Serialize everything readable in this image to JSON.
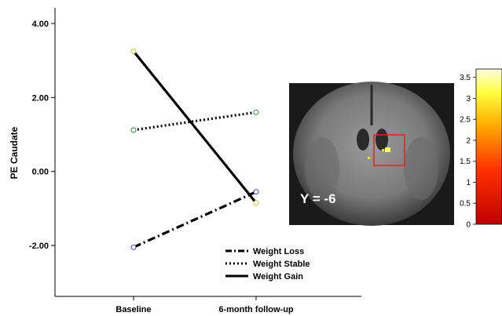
{
  "chart_data": {
    "type": "line",
    "ylabel": "PE Caudate",
    "xlabel": "",
    "categories": [
      "Baseline",
      "6-month follow-up"
    ],
    "y_ticks": [
      "-2.00",
      "0.00",
      "2.00",
      "4.00"
    ],
    "ylim": [
      -3.5,
      4.2
    ],
    "series": [
      {
        "name": "Weight Loss",
        "values": [
          -2.05,
          -0.55
        ],
        "line_style": "dash-dot",
        "marker_color": "#3b56b0"
      },
      {
        "name": "Weight Stable",
        "values": [
          1.12,
          1.6
        ],
        "line_style": "dotted",
        "marker_color": "#2e8b3a"
      },
      {
        "name": "Weight Gain",
        "values": [
          3.25,
          -0.85
        ],
        "line_style": "solid",
        "marker_color": "#c8c23a"
      }
    ],
    "legend_position": "bottom-right",
    "inset": {
      "label": "Y = -6",
      "colorbar_ticks": [
        "0",
        "0.5",
        "1",
        "1.5",
        "2",
        "2.5",
        "3",
        "3.5"
      ],
      "colorbar_range": [
        0,
        3.7
      ],
      "highlight_color": "#e0201c"
    }
  }
}
